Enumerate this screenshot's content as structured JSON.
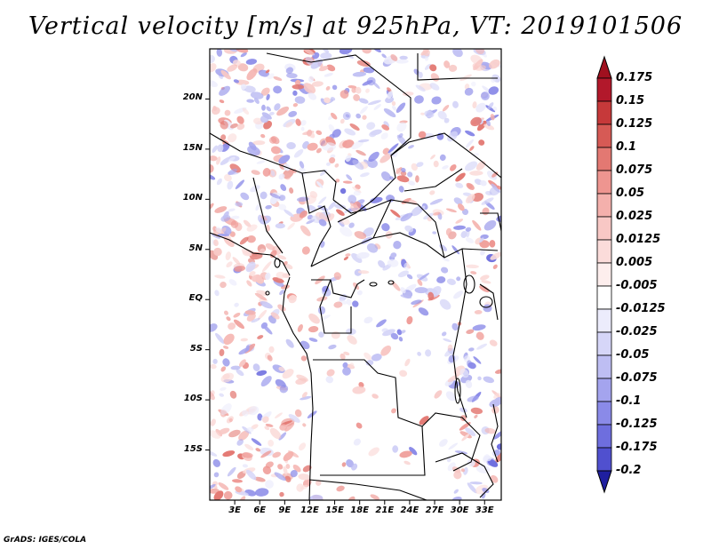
{
  "title": "Vertical velocity [m/s] at 925hPa, VT: 2019101506",
  "footer": "GrADS: IGES/COLA",
  "map": {
    "variable": "Vertical velocity",
    "units": "m/s",
    "level": "925hPa",
    "valid_time": "2019101506",
    "lat_range": [
      -20,
      25
    ],
    "lon_range": [
      0,
      35
    ],
    "lat_labels": [
      {
        "lat": 20,
        "text": "20N"
      },
      {
        "lat": 15,
        "text": "15N"
      },
      {
        "lat": 10,
        "text": "10N"
      },
      {
        "lat": 5,
        "text": "5N"
      },
      {
        "lat": 0,
        "text": "EQ"
      },
      {
        "lat": -5,
        "text": "5S"
      },
      {
        "lat": -10,
        "text": "10S"
      },
      {
        "lat": -15,
        "text": "15S"
      }
    ],
    "lon_labels": [
      {
        "lon": 3,
        "text": "3E"
      },
      {
        "lon": 6,
        "text": "6E"
      },
      {
        "lon": 9,
        "text": "9E"
      },
      {
        "lon": 12,
        "text": "12E"
      },
      {
        "lon": 15,
        "text": "15E"
      },
      {
        "lon": 18,
        "text": "18E"
      },
      {
        "lon": 21,
        "text": "21E"
      },
      {
        "lon": 24,
        "text": "24E"
      },
      {
        "lon": 27,
        "text": "27E"
      },
      {
        "lon": 30,
        "text": "30E"
      },
      {
        "lon": 33,
        "text": "33E"
      }
    ]
  },
  "colorbar": {
    "levels": [
      {
        "label": "0.175",
        "color": "#b2182b"
      },
      {
        "label": "0.15",
        "color": "#c6393a"
      },
      {
        "label": "0.125",
        "color": "#d65a55"
      },
      {
        "label": "0.1",
        "color": "#e37872"
      },
      {
        "label": "0.075",
        "color": "#ee9590"
      },
      {
        "label": "0.05",
        "color": "#f4b0ac"
      },
      {
        "label": "0.025",
        "color": "#f8c8c5"
      },
      {
        "label": "0.0125",
        "color": "#fbdcda"
      },
      {
        "label": "0.005",
        "color": "#fdeeed"
      },
      {
        "label": "-0.005",
        "color": "#ffffff"
      },
      {
        "label": "-0.0125",
        "color": "#ececfc"
      },
      {
        "label": "-0.025",
        "color": "#d6d6f8"
      },
      {
        "label": "-0.05",
        "color": "#bebef3"
      },
      {
        "label": "-0.075",
        "color": "#a4a4ee"
      },
      {
        "label": "-0.1",
        "color": "#8a8ae8"
      },
      {
        "label": "-0.125",
        "color": "#6e6ede"
      },
      {
        "label": "-0.175",
        "color": "#5050cf"
      },
      {
        "label": "-0.2",
        "color": "#3333bb"
      }
    ],
    "over_color": "#a0101f",
    "under_color": "#1f1fa0"
  }
}
